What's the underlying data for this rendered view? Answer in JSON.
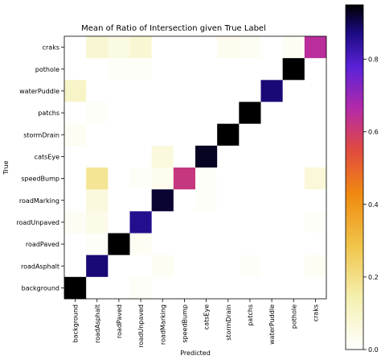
{
  "chart_data": {
    "type": "heatmap",
    "title": "Mean of Ratio of Intersection given True Label",
    "xlabel": "Predicted",
    "ylabel": "True",
    "x_categories": [
      "background",
      "roadAsphalt",
      "roadPaved",
      "roadUnpaved",
      "roadMarking",
      "speedBump",
      "catsEye",
      "stormDrain",
      "patchs",
      "waterPuddle",
      "pothole",
      "craks"
    ],
    "y_categories": [
      "craks",
      "pothole",
      "waterPuddle",
      "patchs",
      "stormDrain",
      "catsEye",
      "speedBump",
      "roadMarking",
      "roadUnpaved",
      "roadPaved",
      "roadAsphalt",
      "background"
    ],
    "values": [
      [
        0.0,
        0.08,
        0.05,
        0.08,
        0.0,
        0.0,
        0.0,
        0.03,
        0.02,
        0.0,
        0.02,
        0.65
      ],
      [
        0.0,
        0.0,
        0.01,
        0.01,
        0.0,
        0.0,
        0.0,
        0.0,
        0.0,
        0.0,
        0.97,
        0.0
      ],
      [
        0.1,
        0.0,
        0.0,
        0.0,
        0.0,
        0.0,
        0.0,
        0.0,
        0.0,
        0.88,
        0.0,
        0.0
      ],
      [
        0.0,
        0.01,
        0.0,
        0.0,
        0.0,
        0.0,
        0.0,
        0.0,
        0.97,
        0.0,
        0.0,
        0.0
      ],
      [
        0.02,
        0.0,
        0.0,
        0.0,
        0.0,
        0.0,
        0.0,
        0.97,
        0.0,
        0.0,
        0.0,
        0.0
      ],
      [
        0.0,
        0.0,
        0.0,
        0.0,
        0.06,
        0.0,
        0.93,
        0.0,
        0.0,
        0.0,
        0.0,
        0.0
      ],
      [
        0.0,
        0.18,
        0.0,
        0.01,
        0.03,
        0.62,
        0.01,
        0.0,
        0.0,
        0.0,
        0.0,
        0.07
      ],
      [
        0.0,
        0.06,
        0.0,
        0.0,
        0.92,
        0.0,
        0.01,
        0.0,
        0.0,
        0.0,
        0.0,
        0.0
      ],
      [
        0.02,
        0.04,
        0.0,
        0.86,
        0.0,
        0.0,
        0.0,
        0.0,
        0.0,
        0.0,
        0.0,
        0.01
      ],
      [
        0.0,
        0.01,
        0.96,
        0.02,
        0.0,
        0.0,
        0.0,
        0.0,
        0.0,
        0.0,
        0.0,
        0.0
      ],
      [
        0.0,
        0.88,
        0.0,
        0.0,
        0.02,
        0.0,
        0.0,
        0.0,
        0.01,
        0.0,
        0.0,
        0.02
      ],
      [
        0.98,
        0.0,
        0.0,
        0.01,
        0.0,
        0.0,
        0.0,
        0.0,
        0.0,
        0.0,
        0.0,
        0.0
      ]
    ],
    "colorbar": {
      "min": 0.0,
      "max": 0.95,
      "ticks": [
        0.0,
        0.2,
        0.4,
        0.6,
        0.8
      ],
      "tick_labels": [
        "0.0",
        "0.2",
        "0.4",
        "0.6",
        "0.8"
      ],
      "colormap": "gnuplot2_r"
    }
  }
}
